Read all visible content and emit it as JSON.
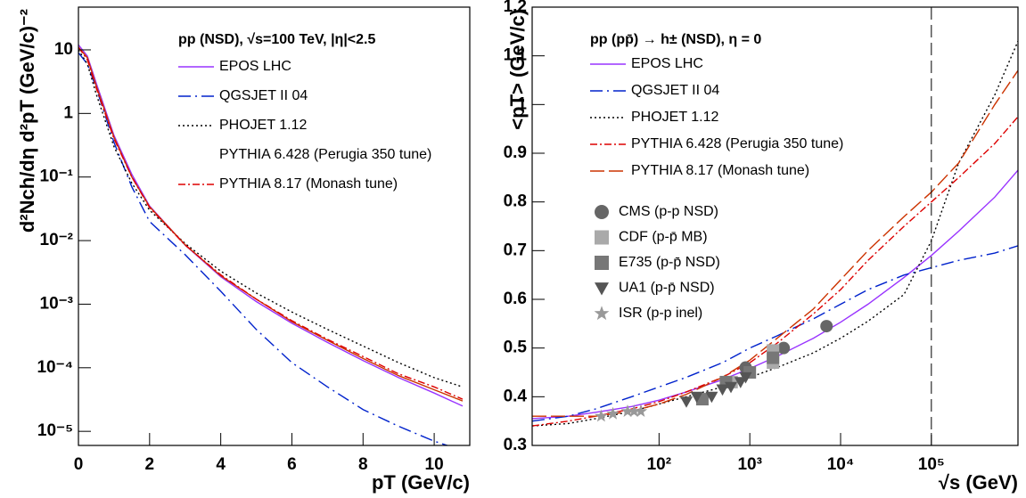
{
  "chart_data": [
    {
      "type": "line",
      "annotation": "pp (NSD), √s=100 TeV, |η|<2.5",
      "x_label": "pT (GeV/c)",
      "y_label": "d²Nch/dη d²pT (GeV/c)⁻²",
      "xlim": [
        0,
        11
      ],
      "xticks": [
        0,
        2,
        4,
        6,
        8,
        10
      ],
      "ylog": true,
      "ylim": [
        6e-06,
        47
      ],
      "yticks": [
        {
          "value": 1e-05,
          "label": "10⁻⁵"
        },
        {
          "value": 0.0001,
          "label": "10⁻⁴"
        },
        {
          "value": 0.001,
          "label": "10⁻³"
        },
        {
          "value": 0.01,
          "label": "10⁻²"
        },
        {
          "value": 0.1,
          "label": "10⁻¹"
        },
        1,
        10
      ],
      "x": [
        0,
        0.25,
        0.5,
        1,
        1.5,
        2,
        3,
        4,
        5,
        6,
        7,
        8,
        9,
        10,
        10.8
      ],
      "series": [
        {
          "name": "EPOS LHC",
          "color": "#9933ff",
          "dash": "none",
          "values": [
            12,
            8,
            3,
            0.45,
            0.11,
            0.035,
            0.0085,
            0.0027,
            0.0011,
            0.0005,
            0.00025,
            0.00013,
            7e-05,
            4e-05,
            2.5e-05
          ]
        },
        {
          "name": "QGSJET II 04",
          "color": "#0022cc",
          "dash": "14,5,2,5",
          "values": [
            9,
            6,
            2.5,
            0.35,
            0.07,
            0.02,
            0.006,
            0.0016,
            0.0004,
            0.00012,
            5e-05,
            2.2e-05,
            1.2e-05,
            7e-06,
            5e-06
          ]
        },
        {
          "name": "PHOJET 1.12",
          "color": "#000000",
          "dash": "2,3",
          "values": [
            10,
            6,
            2,
            0.3,
            0.08,
            0.03,
            0.009,
            0.0033,
            0.0015,
            0.00075,
            0.0004,
            0.00022,
            0.00012,
            7e-05,
            5e-05
          ]
        },
        {
          "name": "PYTHIA 6.428 (Perugia 350 tune)",
          "color": "#cc3300",
          "dash": "none",
          "legend_line": false,
          "values": [
            11,
            7.5,
            2.7,
            0.42,
            0.1,
            0.034,
            0.0086,
            0.0028,
            0.0012,
            0.00053,
            0.00027,
            0.00014,
            7.5e-05,
            4.5e-05,
            3e-05
          ]
        },
        {
          "name": "PYTHIA 8.17 (Monash tune)",
          "color": "#dd0000",
          "dash": "8,3,2,3",
          "values": [
            11,
            7,
            2.5,
            0.4,
            0.1,
            0.033,
            0.0085,
            0.0029,
            0.0012,
            0.00055,
            0.00028,
            0.00015,
            8e-05,
            5e-05,
            3.2e-05
          ]
        }
      ]
    },
    {
      "type": "line",
      "annotation": "pp (pp̄) → h± (NSD), η = 0",
      "x_label": "√s (GeV)",
      "y_label": "<pT> (GeV/c)",
      "xlog": true,
      "xlim": [
        4,
        900000
      ],
      "xticks": [
        {
          "value": 100,
          "label": "10²"
        },
        {
          "value": 1000,
          "label": "10³"
        },
        {
          "value": 10000,
          "label": "10⁴"
        },
        {
          "value": 100000,
          "label": "10⁵"
        }
      ],
      "ylim": [
        0.3,
        1.2
      ],
      "yticks": [
        0.3,
        0.4,
        0.5,
        0.6,
        0.7,
        0.8,
        0.9,
        1,
        1.1,
        1.2
      ],
      "vline": 100000,
      "x": [
        4,
        10,
        20,
        50,
        100,
        200,
        500,
        1000,
        2000,
        5000,
        10000,
        20000,
        50000,
        100000,
        200000,
        500000,
        900000
      ],
      "series": [
        {
          "name": "EPOS LHC",
          "color": "#9933ff",
          "dash": "none",
          "values": [
            0.355,
            0.36,
            0.368,
            0.38,
            0.393,
            0.41,
            0.435,
            0.458,
            0.483,
            0.52,
            0.553,
            0.59,
            0.645,
            0.69,
            0.74,
            0.81,
            0.865
          ]
        },
        {
          "name": "QGSJET II 04",
          "color": "#0022cc",
          "dash": "14,5,2,5",
          "values": [
            0.35,
            0.36,
            0.375,
            0.4,
            0.42,
            0.44,
            0.47,
            0.5,
            0.525,
            0.56,
            0.59,
            0.62,
            0.65,
            0.665,
            0.68,
            0.695,
            0.71
          ]
        },
        {
          "name": "PHOJET 1.12",
          "color": "#000000",
          "dash": "2,3",
          "values": [
            0.34,
            0.345,
            0.355,
            0.37,
            0.385,
            0.4,
            0.42,
            0.44,
            0.46,
            0.49,
            0.52,
            0.555,
            0.61,
            0.72,
            0.88,
            1.02,
            1.13
          ]
        },
        {
          "name": "PYTHIA 6.428 (Perugia 350 tune)",
          "color": "#dd0000",
          "dash": "8,3,2,3",
          "values": [
            0.34,
            0.35,
            0.36,
            0.375,
            0.39,
            0.41,
            0.44,
            0.47,
            0.51,
            0.57,
            0.62,
            0.68,
            0.75,
            0.8,
            0.85,
            0.92,
            0.975
          ]
        },
        {
          "name": "PYTHIA 8.17 (Monash tune)",
          "color": "#cc3300",
          "dash": "16,5",
          "values": [
            0.36,
            0.36,
            0.36,
            0.37,
            0.385,
            0.405,
            0.44,
            0.475,
            0.52,
            0.58,
            0.64,
            0.7,
            0.77,
            0.82,
            0.88,
            1.0,
            1.07
          ]
        }
      ],
      "points": [
        {
          "name": "CMS (p-p NSD)",
          "color": "#666666",
          "marker": "circle",
          "x": [
            900,
            2360,
            7000
          ],
          "values": [
            0.46,
            0.5,
            0.545
          ]
        },
        {
          "name": "CDF (p-p̄ MB)",
          "color": "#aaaaaa",
          "marker": "square",
          "x": [
            630,
            1800,
            1800
          ],
          "values": [
            0.43,
            0.47,
            0.495
          ]
        },
        {
          "name": "E735 (p-p̄ NSD)",
          "color": "#777777",
          "marker": "square",
          "x": [
            300,
            546,
            1000,
            1800
          ],
          "values": [
            0.395,
            0.43,
            0.45,
            0.48
          ]
        },
        {
          "name": "UA1 (p-p̄ NSD)",
          "color": "#555555",
          "marker": "triangle",
          "x": [
            200,
            260,
            380,
            500,
            620,
            790,
            900
          ],
          "values": [
            0.39,
            0.4,
            0.4,
            0.415,
            0.42,
            0.43,
            0.44
          ]
        },
        {
          "name": "ISR (p-p inel)",
          "color": "#999999",
          "marker": "star",
          "x": [
            23,
            31,
            45,
            53,
            63
          ],
          "values": [
            0.36,
            0.365,
            0.37,
            0.37,
            0.37
          ]
        }
      ]
    }
  ]
}
